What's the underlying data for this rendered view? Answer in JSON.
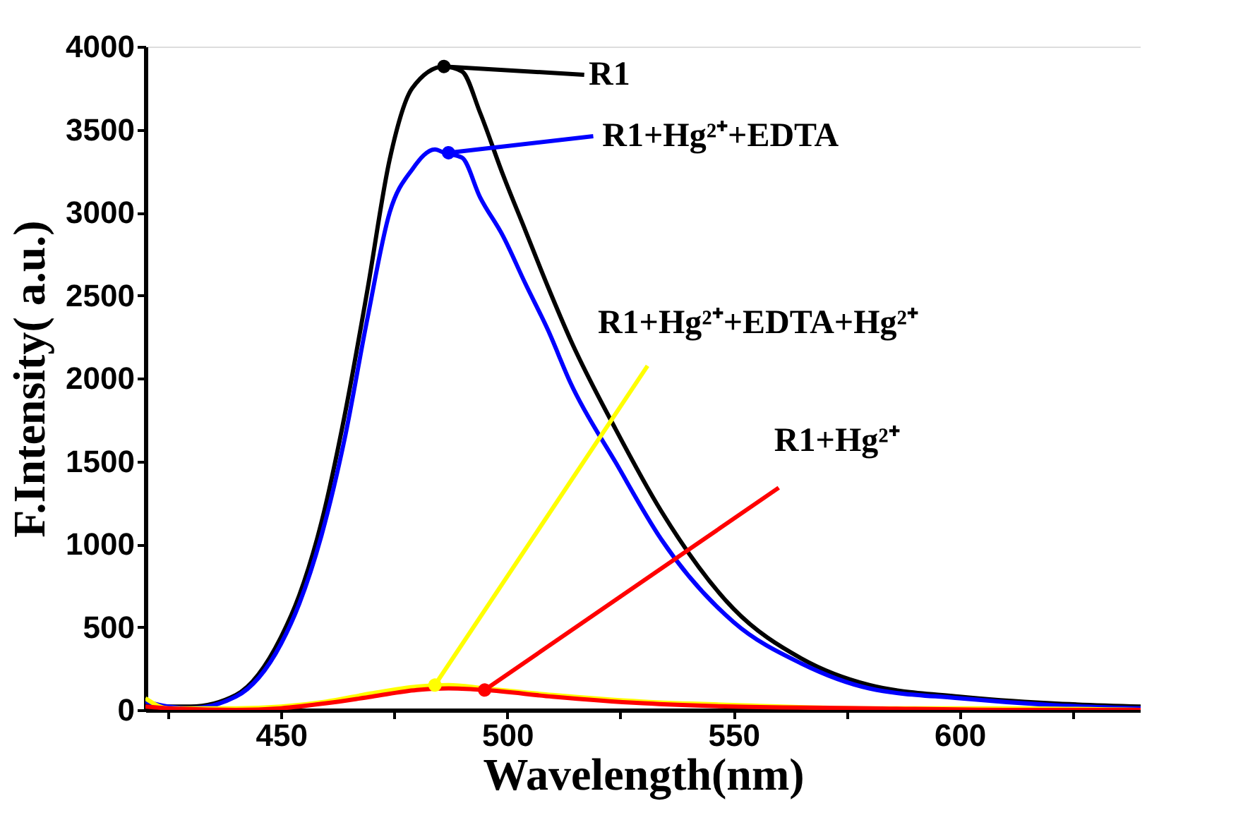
{
  "chart_data": {
    "type": "line",
    "xlabel": "Wavelength(nm)",
    "ylabel": "F.Intensity( a.u.)",
    "xlim": [
      420,
      640
    ],
    "ylim": [
      0,
      4000
    ],
    "xticks": [
      {
        "value": 425,
        "label": null
      },
      450,
      {
        "value": 475,
        "label": null
      },
      500,
      {
        "value": 525,
        "label": null
      },
      550,
      {
        "value": 575,
        "label": null
      },
      600,
      {
        "value": 625,
        "label": null
      }
    ],
    "yticks": [
      0,
      500,
      1000,
      1500,
      2000,
      2500,
      3000,
      3500,
      4000
    ],
    "grid": false,
    "marker": "none",
    "line_style": "solid",
    "series": [
      {
        "color": "#000000",
        "x": [
          420,
          425,
          430,
          440,
          450,
          454,
          459,
          464,
          469,
          474,
          479,
          486,
          490,
          494,
          499,
          504,
          509,
          514,
          524,
          534,
          550,
          565,
          580,
          600,
          620,
          640
        ],
        "values": [
          50,
          20,
          20,
          90,
          440,
          690,
          1140,
          1770,
          2520,
          3320,
          3750,
          3880,
          3850,
          3600,
          3230,
          2890,
          2550,
          2230,
          1690,
          1200,
          610,
          310,
          150,
          80,
          40,
          20
        ]
      },
      {
        "color": "#0000ff",
        "x": [
          420,
          425,
          430,
          440,
          450,
          454,
          459,
          464,
          469,
          474,
          479,
          484,
          486,
          490,
          494,
          499,
          504,
          509,
          514,
          524,
          534,
          550,
          565,
          580,
          600,
          620,
          640
        ],
        "values": [
          50,
          20,
          10,
          80,
          400,
          640,
          1060,
          1630,
          2350,
          3000,
          3260,
          3380,
          3360,
          3330,
          3090,
          2860,
          2570,
          2290,
          1970,
          1490,
          1030,
          530,
          280,
          130,
          70,
          30,
          10
        ]
      },
      {
        "color": "#ffff00",
        "x": [
          420,
          425,
          440,
          450,
          460,
          470,
          480,
          487,
          495,
          510,
          530,
          550,
          580,
          610,
          640
        ],
        "values": [
          70,
          10,
          10,
          20,
          50,
          100,
          140,
          150,
          130,
          90,
          50,
          30,
          10,
          10,
          0
        ]
      },
      {
        "color": "#ff0000",
        "x": [
          420,
          425,
          440,
          450,
          460,
          470,
          480,
          487,
          495,
          510,
          530,
          550,
          580,
          610,
          640
        ],
        "values": [
          20,
          10,
          0,
          10,
          40,
          80,
          120,
          130,
          120,
          80,
          40,
          20,
          10,
          0,
          0
        ]
      }
    ],
    "annotations": [
      "R1",
      {
        "text": "R1+Hg²⁺+EDTA",
        "x": 487,
        "y": 3360
      },
      {
        "text": "R1+Hg²⁺+EDTA+Hg²⁺",
        "x": 484,
        "y": 150
      },
      {
        "text": "R1+Hg²⁺",
        "x": 495,
        "y": 120
      }
    ]
  }
}
